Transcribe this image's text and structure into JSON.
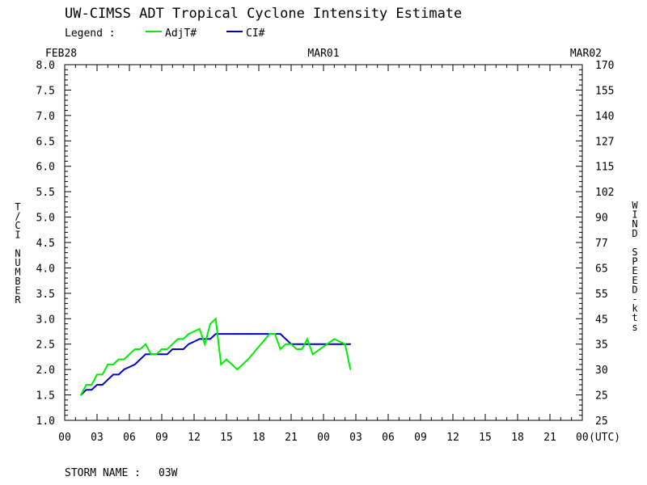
{
  "chart_data": {
    "type": "line",
    "title": "UW-CIMSS ADT Tropical Cyclone Intensity Estimate",
    "legend": {
      "label": "Legend :",
      "placement": "top-left",
      "entries": [
        {
          "name": "AdjT#",
          "color": "#00ee00"
        },
        {
          "name": "CI#",
          "color": "#0000cc"
        }
      ]
    },
    "ylabel_left": "T/CI NUMBER",
    "ylabel_right": "WIND SPEED-kts",
    "xlabel_unit": "(UTC)",
    "date_labels": [
      {
        "hour": 0,
        "label": "FEB28"
      },
      {
        "hour": 24,
        "label": "MAR01"
      },
      {
        "hour": 48,
        "label": "MAR02"
      }
    ],
    "xlim": [
      0,
      48
    ],
    "ylim": [
      1.0,
      8.0
    ],
    "x_ticks": [
      "00",
      "03",
      "06",
      "09",
      "12",
      "15",
      "18",
      "21",
      "00",
      "03",
      "06",
      "09",
      "12",
      "15",
      "18",
      "21",
      "00"
    ],
    "y_ticks_left": [
      "1.0",
      "1.5",
      "2.0",
      "2.5",
      "3.0",
      "3.5",
      "4.0",
      "4.5",
      "5.0",
      "5.5",
      "6.0",
      "6.5",
      "7.0",
      "7.5",
      "8.0"
    ],
    "y_ticks_right": [
      "25",
      "25",
      "30",
      "35",
      "45",
      "55",
      "65",
      "77",
      "90",
      "102",
      "115",
      "127",
      "140",
      "155",
      "170"
    ],
    "grid": false,
    "series": [
      {
        "name": "AdjT#",
        "color": "#00ee00",
        "x": [
          1.5,
          2.0,
          2.5,
          3.0,
          3.5,
          4.0,
          4.5,
          5.0,
          5.5,
          6.0,
          6.5,
          7.0,
          7.5,
          8.0,
          8.5,
          9.0,
          9.5,
          10.0,
          10.5,
          11.0,
          11.5,
          12.0,
          12.5,
          13.0,
          13.5,
          14.0,
          14.5,
          15.0,
          15.5,
          16.0,
          17.0,
          18.0,
          19.0,
          19.5,
          20.0,
          20.5,
          21.0,
          21.5,
          22.0,
          22.5,
          23.0,
          24.0,
          25.0,
          25.5,
          26.0,
          26.5
        ],
        "values": [
          1.5,
          1.7,
          1.7,
          1.9,
          1.9,
          2.1,
          2.1,
          2.2,
          2.2,
          2.3,
          2.4,
          2.4,
          2.5,
          2.3,
          2.3,
          2.4,
          2.4,
          2.5,
          2.6,
          2.6,
          2.7,
          2.75,
          2.8,
          2.5,
          2.9,
          3.0,
          2.1,
          2.2,
          2.1,
          2.0,
          2.2,
          2.45,
          2.7,
          2.7,
          2.4,
          2.5,
          2.5,
          2.4,
          2.4,
          2.6,
          2.3,
          2.45,
          2.6,
          2.55,
          2.5,
          2.0
        ]
      },
      {
        "name": "CI#",
        "color": "#0000cc",
        "x": [
          1.5,
          2.0,
          2.5,
          3.0,
          3.5,
          4.0,
          4.5,
          5.0,
          5.5,
          6.0,
          6.5,
          7.0,
          7.5,
          8.0,
          8.5,
          9.0,
          9.5,
          10.0,
          10.5,
          11.0,
          11.5,
          12.0,
          12.5,
          13.0,
          13.5,
          14.0,
          15.0,
          16.0,
          17.0,
          18.0,
          19.0,
          19.5,
          20.0,
          20.5,
          21.0,
          22.0,
          23.0,
          24.0,
          25.0,
          26.0,
          26.5
        ],
        "values": [
          1.5,
          1.6,
          1.6,
          1.7,
          1.7,
          1.8,
          1.9,
          1.9,
          2.0,
          2.05,
          2.1,
          2.2,
          2.3,
          2.3,
          2.3,
          2.3,
          2.3,
          2.4,
          2.4,
          2.4,
          2.5,
          2.55,
          2.6,
          2.6,
          2.6,
          2.7,
          2.7,
          2.7,
          2.7,
          2.7,
          2.7,
          2.7,
          2.7,
          2.6,
          2.5,
          2.5,
          2.5,
          2.5,
          2.5,
          2.5,
          2.5
        ]
      }
    ]
  },
  "storm": {
    "label": "STORM NAME :",
    "name": "03W"
  }
}
